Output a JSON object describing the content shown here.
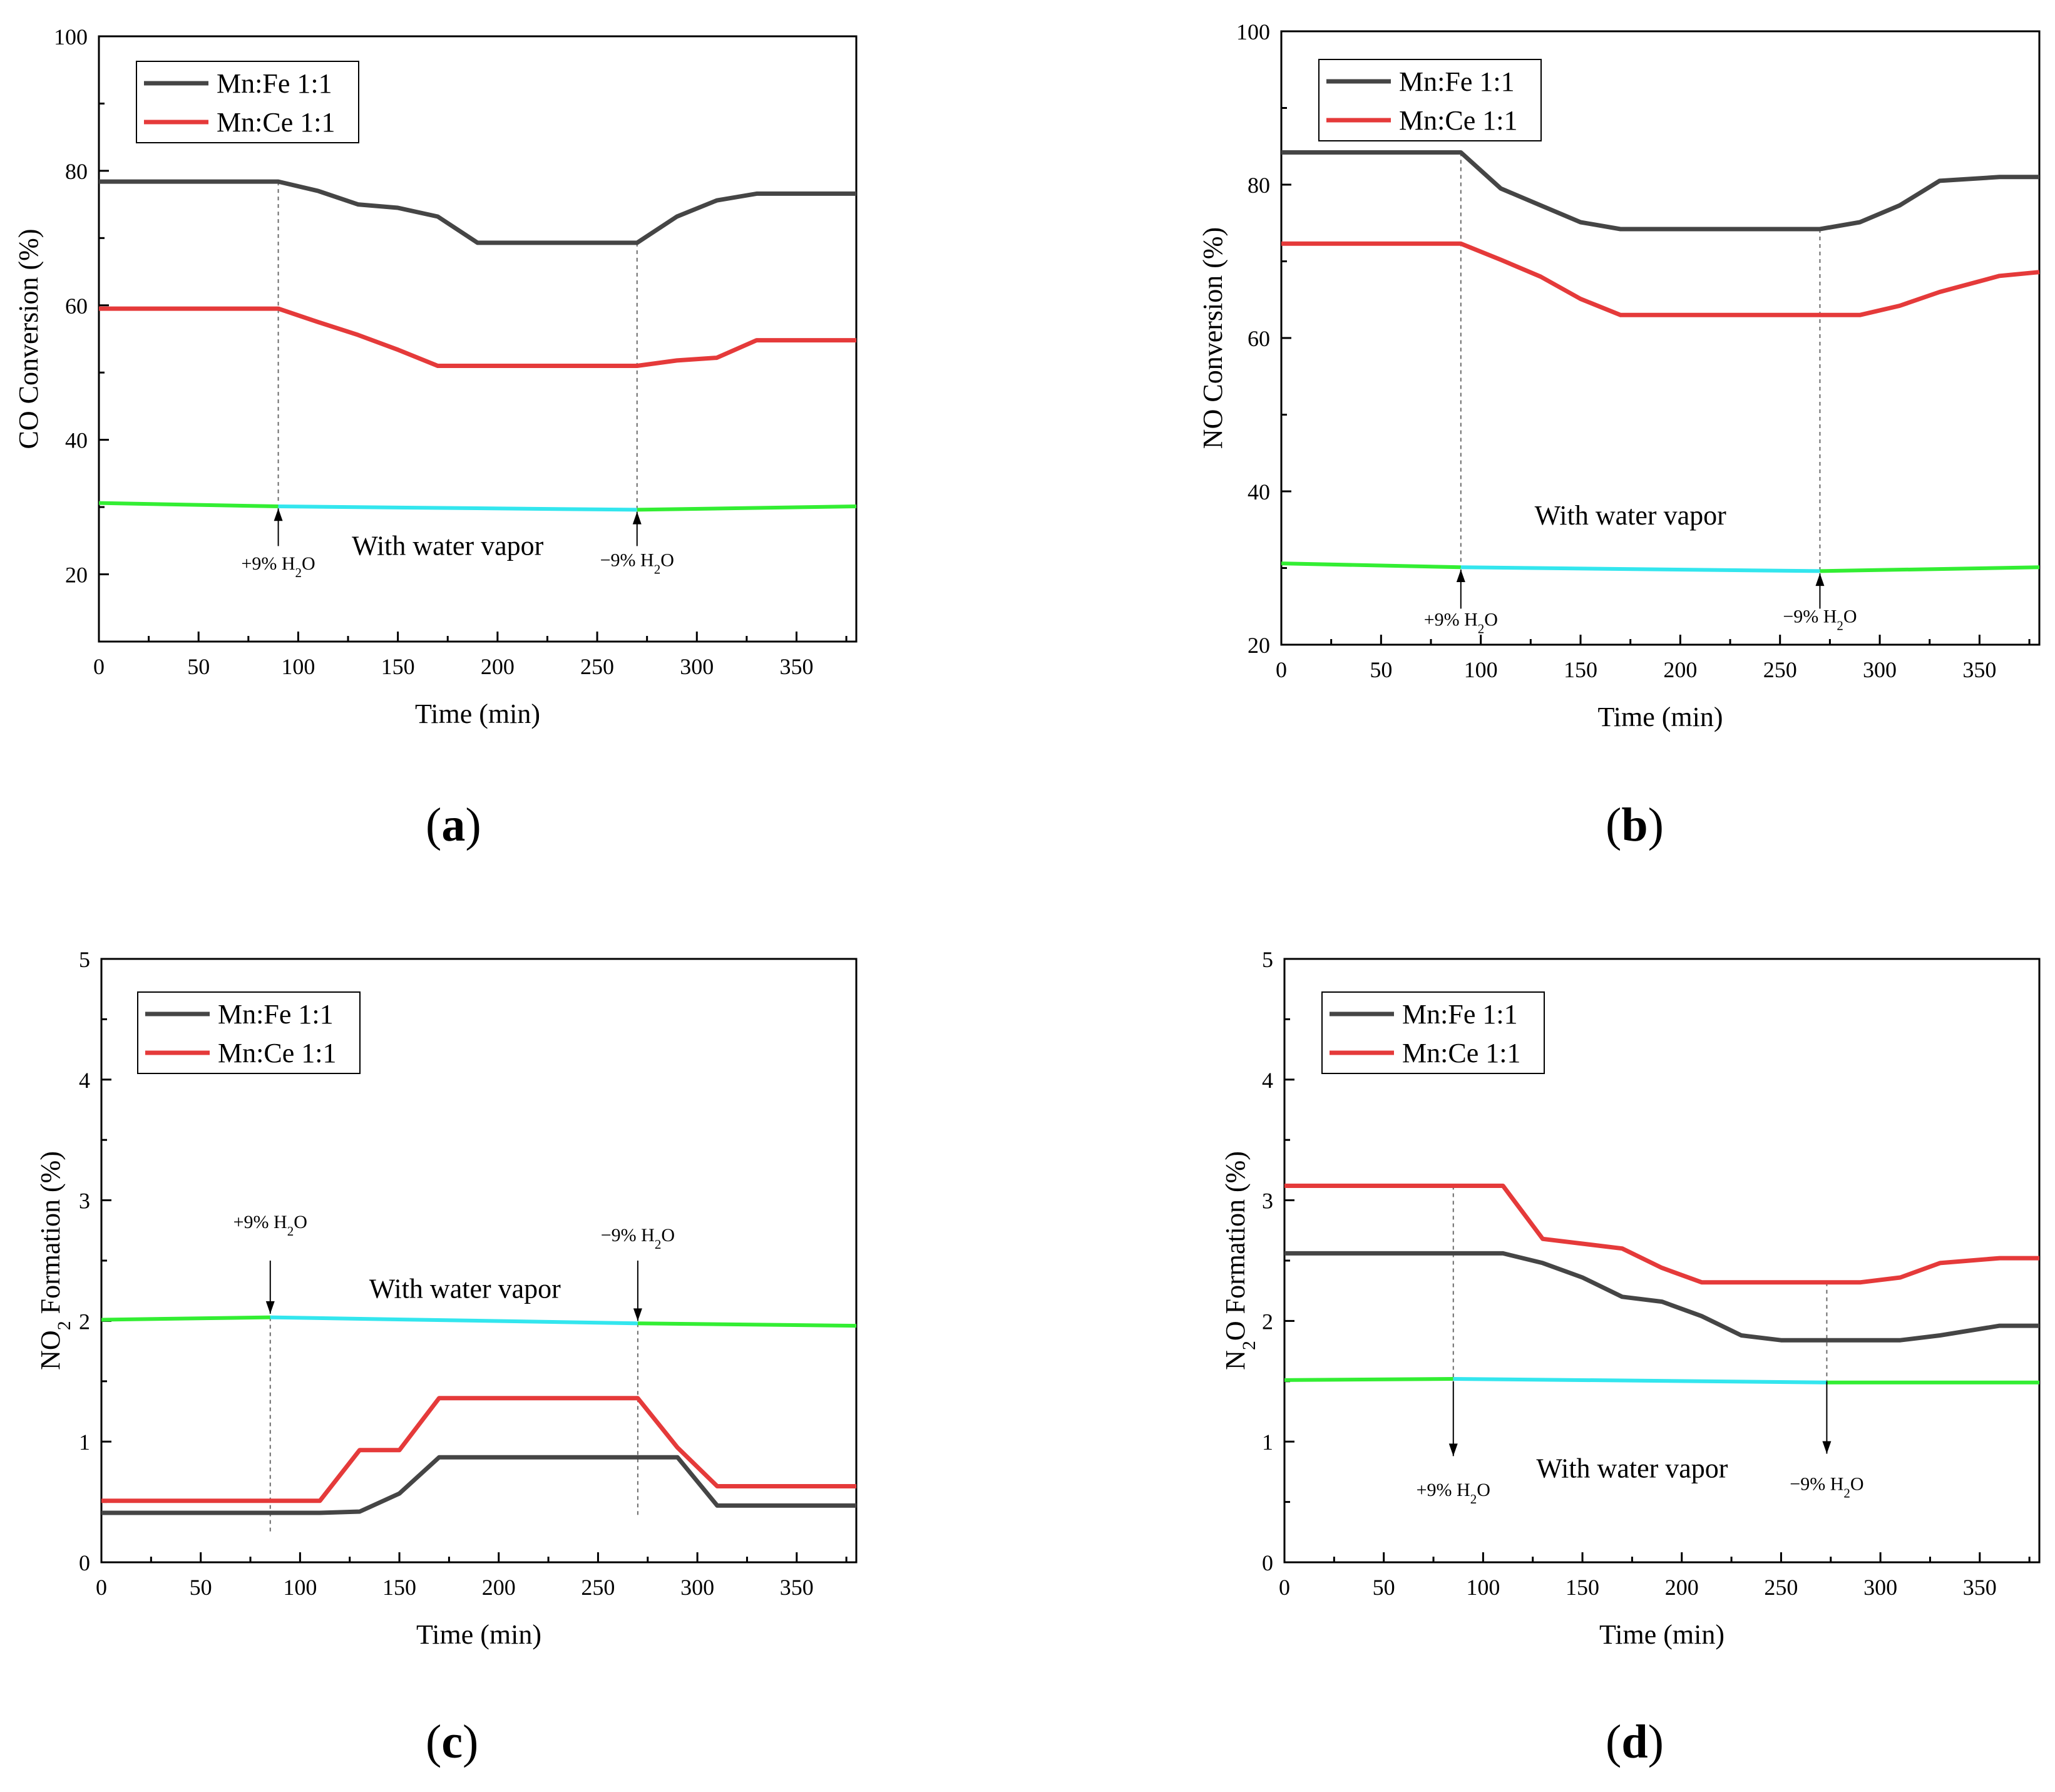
{
  "figure": {
    "panel_labels": [
      "a",
      "b",
      "c",
      "d"
    ]
  },
  "colors": {
    "mn_fe": "#454545",
    "mn_ce": "#e53a3a",
    "baseline_green": "#33ee33",
    "baseline_cyan": "#33e6ee",
    "axis": "#000000",
    "guide": "#6b6b6b"
  },
  "chart_data": [
    {
      "type": "line",
      "panel": "a",
      "ylabel_parts": [
        {
          "t": "CO Conversion (%)",
          "sub": false
        }
      ],
      "xlabel": "Time (min)",
      "xlim": [
        0,
        380
      ],
      "ylim": [
        10,
        100
      ],
      "xticks": [
        0,
        50,
        100,
        150,
        200,
        250,
        300,
        350
      ],
      "yticks": [
        20,
        40,
        60,
        80,
        100
      ],
      "legend": [
        "Mn:Fe 1:1",
        "Mn:Ce 1:1"
      ],
      "series": [
        {
          "name": "Mn:Fe 1:1",
          "color_key": "mn_fe",
          "x": [
            0,
            90,
            110,
            130,
            150,
            170,
            190,
            270,
            290,
            310,
            330,
            380
          ],
          "y": [
            78.4,
            78.4,
            77.0,
            75.0,
            74.5,
            73.2,
            69.3,
            69.3,
            73.2,
            75.6,
            76.6,
            76.6
          ]
        },
        {
          "name": "Mn:Ce 1:1",
          "color_key": "mn_ce",
          "x": [
            0,
            90,
            110,
            130,
            150,
            170,
            190,
            270,
            290,
            310,
            330,
            380
          ],
          "y": [
            59.5,
            59.5,
            57.5,
            55.6,
            53.4,
            51.0,
            51.0,
            51.0,
            51.8,
            52.2,
            54.8,
            54.8
          ]
        }
      ],
      "baseline": {
        "x": [
          0,
          90,
          270,
          380
        ],
        "y": [
          30.6,
          30.1,
          29.6,
          30.1
        ]
      },
      "guides": [
        {
          "x": 90,
          "from": 78.4,
          "to": 30.1
        },
        {
          "x": 270,
          "from": 69.3,
          "to": 29.6
        }
      ],
      "arrows": [
        {
          "x": 90,
          "from": 24.2,
          "to": 29.8,
          "label": "+9% H",
          "label_x": 90,
          "label_y": 20.7
        },
        {
          "x": 270,
          "from": 24.2,
          "to": 29.3,
          "label": "−9% H",
          "label_x": 270,
          "label_y": 21.2
        }
      ],
      "annotation": {
        "text": "With water vapor",
        "x": 175,
        "y": 24.3
      }
    },
    {
      "type": "line",
      "panel": "b",
      "ylabel_parts": [
        {
          "t": "NO Conversion (%)",
          "sub": false
        }
      ],
      "xlabel": "Time (min)",
      "xlim": [
        0,
        380
      ],
      "ylim": [
        20,
        100
      ],
      "xticks": [
        0,
        50,
        100,
        150,
        200,
        250,
        300,
        350
      ],
      "yticks": [
        20,
        40,
        60,
        80,
        100
      ],
      "legend": [
        "Mn:Fe 1:1",
        "Mn:Ce 1:1"
      ],
      "series": [
        {
          "name": "Mn:Fe 1:1",
          "color_key": "mn_fe",
          "x": [
            0,
            90,
            110,
            130,
            150,
            170,
            190,
            270,
            290,
            310,
            330,
            360,
            380
          ],
          "y": [
            84.2,
            84.2,
            79.5,
            77.3,
            75.1,
            74.2,
            74.2,
            74.2,
            75.1,
            77.3,
            80.5,
            81.0,
            81.0
          ]
        },
        {
          "name": "Mn:Ce 1:1",
          "color_key": "mn_ce",
          "x": [
            0,
            90,
            110,
            130,
            150,
            170,
            190,
            270,
            290,
            310,
            330,
            360,
            380
          ],
          "y": [
            72.3,
            72.3,
            70.2,
            68.0,
            65.1,
            63.0,
            63.0,
            63.0,
            63.0,
            64.2,
            66.0,
            68.1,
            68.6
          ]
        }
      ],
      "baseline": {
        "x": [
          0,
          90,
          270,
          380
        ],
        "y": [
          30.6,
          30.1,
          29.6,
          30.1
        ]
      },
      "guides": [
        {
          "x": 90,
          "from": 84.2,
          "to": 30.1
        },
        {
          "x": 270,
          "from": 74.2,
          "to": 29.6
        }
      ],
      "arrows": [
        {
          "x": 90,
          "from": 24.7,
          "to": 29.8,
          "label": "+9% H",
          "label_x": 90,
          "label_y": 22.5
        },
        {
          "x": 270,
          "from": 24.7,
          "to": 29.3,
          "label": "−9% H",
          "label_x": 270,
          "label_y": 22.9
        }
      ],
      "annotation": {
        "text": "With water vapor",
        "x": 175,
        "y": 36.9
      }
    },
    {
      "type": "line",
      "panel": "c",
      "ylabel_parts": [
        {
          "t": "NO",
          "sub": false
        },
        {
          "t": "2",
          "sub": true
        },
        {
          "t": " Formation (%)",
          "sub": false
        }
      ],
      "xlabel": "Time (min)",
      "xlim": [
        0,
        380
      ],
      "ylim": [
        0,
        5
      ],
      "xticks": [
        0,
        50,
        100,
        150,
        200,
        250,
        300,
        350
      ],
      "yticks": [
        0,
        1,
        2,
        3,
        4,
        5
      ],
      "legend": [
        "Mn:Fe 1:1",
        "Mn:Ce 1:1"
      ],
      "series": [
        {
          "name": "Mn:Fe 1:1",
          "color_key": "mn_fe",
          "x": [
            0,
            110,
            130,
            150,
            170,
            190,
            270,
            290,
            310,
            330,
            380
          ],
          "y": [
            0.41,
            0.41,
            0.42,
            0.57,
            0.87,
            0.87,
            0.87,
            0.87,
            0.47,
            0.47,
            0.47
          ]
        },
        {
          "name": "Mn:Ce 1:1",
          "color_key": "mn_ce",
          "x": [
            0,
            110,
            130,
            150,
            170,
            190,
            270,
            290,
            310,
            330,
            380
          ],
          "y": [
            0.51,
            0.51,
            0.93,
            0.93,
            1.36,
            1.36,
            1.36,
            0.95,
            0.63,
            0.63,
            0.63
          ]
        }
      ],
      "baseline": {
        "x": [
          0,
          85,
          270,
          380
        ],
        "y": [
          2.01,
          2.03,
          1.98,
          1.96
        ]
      },
      "guides": [
        {
          "x": 85,
          "from": 2.03,
          "to": 0.25
        },
        {
          "x": 270,
          "from": 1.98,
          "to": 0.37
        }
      ],
      "arrows": [
        {
          "x": 85,
          "from": 2.5,
          "to": 2.06,
          "label": "+9% H",
          "label_x": 85,
          "label_y": 2.77
        },
        {
          "x": 270,
          "from": 2.5,
          "to": 2.0,
          "label": "−9% H",
          "label_x": 270,
          "label_y": 2.66
        }
      ],
      "annotation": {
        "text": "With water vapor",
        "x": 183,
        "y": 2.27
      }
    },
    {
      "type": "line",
      "panel": "d",
      "ylabel_parts": [
        {
          "t": "N",
          "sub": false
        },
        {
          "t": "2",
          "sub": true
        },
        {
          "t": "O Formation (%)",
          "sub": false
        }
      ],
      "xlabel": "Time (min)",
      "xlim": [
        0,
        380
      ],
      "ylim": [
        0,
        5
      ],
      "xticks": [
        0,
        50,
        100,
        150,
        200,
        250,
        300,
        350
      ],
      "yticks": [
        0,
        1,
        2,
        3,
        4,
        5
      ],
      "legend": [
        "Mn:Fe 1:1",
        "Mn:Ce 1:1"
      ],
      "series": [
        {
          "name": "Mn:Fe 1:1",
          "color_key": "mn_fe",
          "x": [
            0,
            110,
            130,
            150,
            170,
            190,
            210,
            230,
            250,
            270,
            290,
            310,
            330,
            360,
            380
          ],
          "y": [
            2.56,
            2.56,
            2.48,
            2.36,
            2.2,
            2.16,
            2.04,
            1.88,
            1.84,
            1.84,
            1.84,
            1.84,
            1.88,
            1.96,
            1.96
          ]
        },
        {
          "name": "Mn:Ce 1:1",
          "color_key": "mn_ce",
          "x": [
            0,
            110,
            130,
            150,
            170,
            190,
            210,
            230,
            250,
            270,
            290,
            310,
            330,
            360,
            380
          ],
          "y": [
            3.12,
            3.12,
            2.68,
            2.64,
            2.6,
            2.44,
            2.32,
            2.32,
            2.32,
            2.32,
            2.32,
            2.36,
            2.48,
            2.52,
            2.52
          ]
        }
      ],
      "baseline": {
        "x": [
          0,
          85,
          273,
          380
        ],
        "y": [
          1.51,
          1.52,
          1.49,
          1.49
        ]
      },
      "guides": [
        {
          "x": 85,
          "from": 3.12,
          "to": 1.52
        },
        {
          "x": 273,
          "from": 2.32,
          "to": 1.49
        }
      ],
      "arrows": [
        {
          "x": 85,
          "from": 1.5,
          "to": 0.88,
          "label": "+9% H",
          "label_x": 85,
          "label_y": 0.55
        },
        {
          "x": 273,
          "from": 1.5,
          "to": 0.9,
          "label": "−9% H",
          "label_x": 273,
          "label_y": 0.6
        }
      ],
      "annotation": {
        "text": "With water vapor",
        "x": 175,
        "y": 0.78
      }
    }
  ]
}
